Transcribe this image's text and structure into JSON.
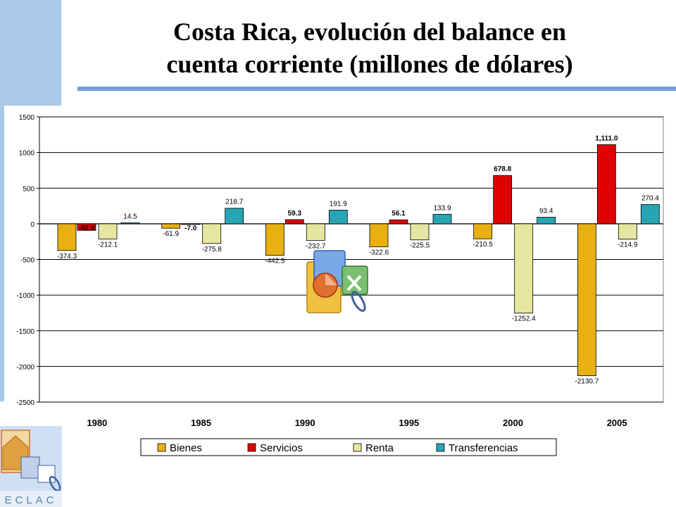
{
  "slide": {
    "title_line1": "Costa Rica, evolución del balance en",
    "title_line2": "cuenta corriente (millones de dólares)",
    "logo_text": "ECLAC",
    "accent_color": "#6e9fd8"
  },
  "chart_data": {
    "type": "bar",
    "categories": [
      "1980",
      "1985",
      "1990",
      "1995",
      "2000",
      "2005"
    ],
    "series": [
      {
        "name": "Bienes",
        "color": "#e8b010",
        "values": [
          -374.3,
          -61.9,
          -442.5,
          -322.6,
          -210.5,
          -2130.7
        ],
        "labels": [
          "-374.3",
          "-61.9",
          "-442.5",
          "-322.6",
          "-210.5",
          "-2130.7"
        ]
      },
      {
        "name": "Servicios",
        "color": "#e00000",
        "values": [
          -92.0,
          -7.0,
          59.3,
          56.1,
          678.8,
          1111.0
        ],
        "labels": [
          "-92.0",
          "-7.0",
          "59.3",
          "56.1",
          "678.8",
          "1,111.0"
        ]
      },
      {
        "name": "Renta",
        "color": "#e6e6a0",
        "values": [
          -212.1,
          -275.8,
          -232.7,
          -225.5,
          -1252.4,
          -214.9
        ],
        "labels": [
          "-212.1",
          "-275.8",
          "-232.7",
          "-225.5",
          "-1252.4",
          "-214.9"
        ]
      },
      {
        "name": "Transferencias",
        "color": "#27a5b5",
        "values": [
          14.5,
          218.7,
          191.9,
          133.9,
          93.4,
          270.4
        ],
        "labels": [
          "14.5",
          "218.7",
          "191.9",
          "133.9",
          "93.4",
          "270.4"
        ]
      }
    ],
    "ylim": [
      -2500,
      1500
    ],
    "yticks": [
      1500,
      1000,
      500,
      0,
      -500,
      -1000,
      -1500,
      -2000,
      -2500
    ],
    "grid": true,
    "legend_position": "bottom"
  }
}
